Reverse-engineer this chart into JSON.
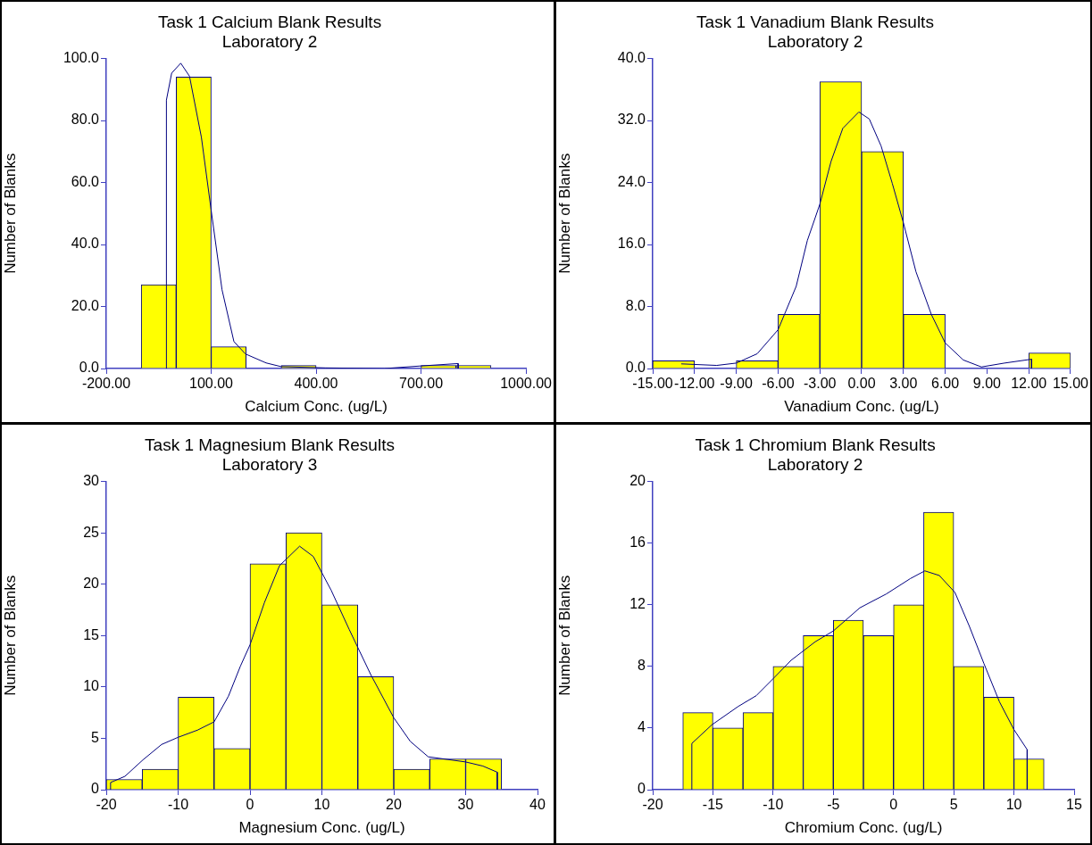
{
  "chart_data": [
    {
      "type": "histogram",
      "title": "Task 1 Calcium Blank Results",
      "subtitle": "Laboratory 2",
      "xlabel": "Calcium Conc. (ug/L)",
      "ylabel": "Number of Blanks",
      "color": "#ffff00",
      "bins": [
        -100,
        0,
        100,
        200,
        300,
        400,
        500,
        600,
        700,
        800,
        900
      ],
      "values": [
        27,
        94,
        7,
        0,
        1,
        0,
        0,
        0,
        1,
        1
      ],
      "series": [
        {
          "type": "line",
          "color": "#000080",
          "x": [
            -28,
            -28,
            -13,
            13,
            38,
            72,
            100,
            131,
            165,
            198,
            257,
            300,
            426,
            595,
            696,
            806,
            806
          ],
          "values": [
            0,
            86.6,
            95.3,
            98.5,
            94.3,
            74.6,
            51,
            25.4,
            8.7,
            4.7,
            1.8,
            0.6,
            0.2,
            0,
            0.8,
            1.6,
            0
          ]
        }
      ],
      "xlim": [
        -200,
        1000
      ],
      "xticks": [
        {
          "value": -200,
          "label": "-200.00"
        },
        {
          "value": 100,
          "label": "100.00"
        },
        {
          "value": 400,
          "label": "400.00"
        },
        {
          "value": 700,
          "label": "700.00"
        },
        {
          "value": 1000,
          "label": "1000.00"
        }
      ],
      "ylim": [
        0,
        100
      ],
      "yticks": [
        {
          "value": 0,
          "label": "0.0"
        },
        {
          "value": 20,
          "label": "20.0"
        },
        {
          "value": 40,
          "label": "40.0"
        },
        {
          "value": 60,
          "label": "60.0"
        },
        {
          "value": 80,
          "label": "80.0"
        },
        {
          "value": 100,
          "label": "100.0"
        }
      ]
    },
    {
      "type": "histogram",
      "title": "Task 1 Vanadium Blank Results",
      "subtitle": "Laboratory 2",
      "xlabel": "Vanadium Conc. (ug/L)",
      "ylabel": "Number of Blanks",
      "color": "#ffff00",
      "bins": [
        -15,
        -12,
        -9,
        -6,
        -3,
        0,
        3,
        6,
        9,
        12,
        15
      ],
      "values": [
        1,
        0,
        1,
        7,
        37,
        28,
        7,
        0,
        0,
        2
      ],
      "series": [
        {
          "type": "line",
          "color": "#000080",
          "x": [
            -12.95,
            -10.4,
            -9.0,
            -7.5,
            -6.0,
            -4.7,
            -3.9,
            -3.0,
            -2.2,
            -1.35,
            -0.2,
            0.55,
            1.4,
            2.2,
            3.0,
            3.9,
            5.0,
            6.0,
            7.3,
            8.6,
            10.25,
            12.2,
            12.2
          ],
          "values": [
            0.6,
            0.4,
            0.7,
            1.9,
            5.0,
            10.6,
            16.5,
            21.2,
            26.7,
            31.0,
            33.1,
            32.2,
            28.7,
            23.9,
            18.8,
            12.5,
            7.0,
            3.3,
            1.1,
            0.2,
            0.7,
            1.2,
            0
          ]
        }
      ],
      "xlim": [
        -15,
        15
      ],
      "xticks": [
        {
          "value": -15,
          "label": "-15.00"
        },
        {
          "value": -12,
          "label": "-12.00"
        },
        {
          "value": -9,
          "label": "-9.00"
        },
        {
          "value": -6,
          "label": "-6.00"
        },
        {
          "value": -3,
          "label": "-3.00"
        },
        {
          "value": 0,
          "label": "0.00"
        },
        {
          "value": 3,
          "label": "3.00"
        },
        {
          "value": 6,
          "label": "6.00"
        },
        {
          "value": 9,
          "label": "9.00"
        },
        {
          "value": 12,
          "label": "12.00"
        },
        {
          "value": 15,
          "label": "15.00"
        }
      ],
      "ylim": [
        0,
        40
      ],
      "yticks": [
        {
          "value": 0,
          "label": "0.0"
        },
        {
          "value": 8,
          "label": "8.0"
        },
        {
          "value": 16,
          "label": "16.0"
        },
        {
          "value": 24,
          "label": "24.0"
        },
        {
          "value": 32,
          "label": "32.0"
        },
        {
          "value": 40,
          "label": "40.0"
        }
      ]
    },
    {
      "type": "histogram",
      "title": "Task 1 Magnesium Blank Results",
      "subtitle": "Laboratory 3",
      "xlabel": "Magnesium Conc. (ug/L)",
      "ylabel": "Number of Blanks",
      "color": "#ffff00",
      "bins": [
        -20,
        -15,
        -10,
        -5,
        0,
        5,
        10,
        15,
        20,
        25,
        30,
        35
      ],
      "values": [
        1,
        2,
        9,
        4,
        22,
        25,
        18,
        11,
        2,
        3,
        3
      ],
      "series": [
        {
          "type": "line",
          "color": "#000080",
          "x": [
            -19.4,
            -19.4,
            -17.4,
            -14.9,
            -12.3,
            -10.0,
            -7.3,
            -5.0,
            -3.0,
            -1.35,
            0,
            2.0,
            4.1,
            6.9,
            8.8,
            11.3,
            13.8,
            16.8,
            20.0,
            22.3,
            24.8,
            30.0,
            32.4,
            34.4,
            34.4
          ],
          "values": [
            0,
            0.7,
            1.3,
            2.9,
            4.4,
            5.1,
            5.8,
            6.6,
            9.1,
            12.0,
            14.1,
            18.2,
            21.8,
            23.7,
            22.7,
            19.4,
            15.6,
            11.2,
            7.0,
            4.7,
            3.2,
            2.7,
            2.3,
            1.7,
            0
          ]
        }
      ],
      "xlim": [
        -20,
        40
      ],
      "xticks": [
        -20,
        -10,
        0,
        10,
        20,
        30,
        40
      ],
      "ylim": [
        0,
        30
      ],
      "yticks": [
        0,
        5,
        10,
        15,
        20,
        25,
        30
      ]
    },
    {
      "type": "histogram",
      "title": "Task 1 Chromium Blank Results",
      "subtitle": "Laboratory 2",
      "xlabel": "Chromium Conc. (ug/L)",
      "ylabel": "Number of Blanks",
      "color": "#ffff00",
      "bins": [
        -17.5,
        -15,
        -12.5,
        -10,
        -7.5,
        -5,
        -2.5,
        0,
        2.5,
        5,
        7.5,
        10,
        12.5
      ],
      "values": [
        5,
        4,
        5,
        8,
        10,
        11,
        10,
        12,
        18,
        8,
        6,
        2
      ],
      "series": [
        {
          "type": "line",
          "color": "#000080",
          "x": [
            -16.75,
            -16.75,
            -15.1,
            -12.9,
            -11.4,
            -10.0,
            -8.5,
            -6.5,
            -5.0,
            -2.8,
            -0.6,
            1.4,
            2.6,
            3.8,
            5.1,
            6.3,
            7.5,
            8.8,
            10.0,
            11.1,
            11.1
          ],
          "values": [
            0,
            3.0,
            4.2,
            5.4,
            6.1,
            7.2,
            8.4,
            9.6,
            10.3,
            11.8,
            12.7,
            13.7,
            14.2,
            13.9,
            12.8,
            10.6,
            8.2,
            5.7,
            3.9,
            2.6,
            0
          ]
        }
      ],
      "xlim": [
        -20,
        15
      ],
      "xticks": [
        -20,
        -15,
        -10,
        -5,
        0,
        5,
        10,
        15
      ],
      "ylim": [
        0,
        20
      ],
      "yticks": [
        0,
        4,
        8,
        12,
        16,
        20
      ]
    }
  ]
}
